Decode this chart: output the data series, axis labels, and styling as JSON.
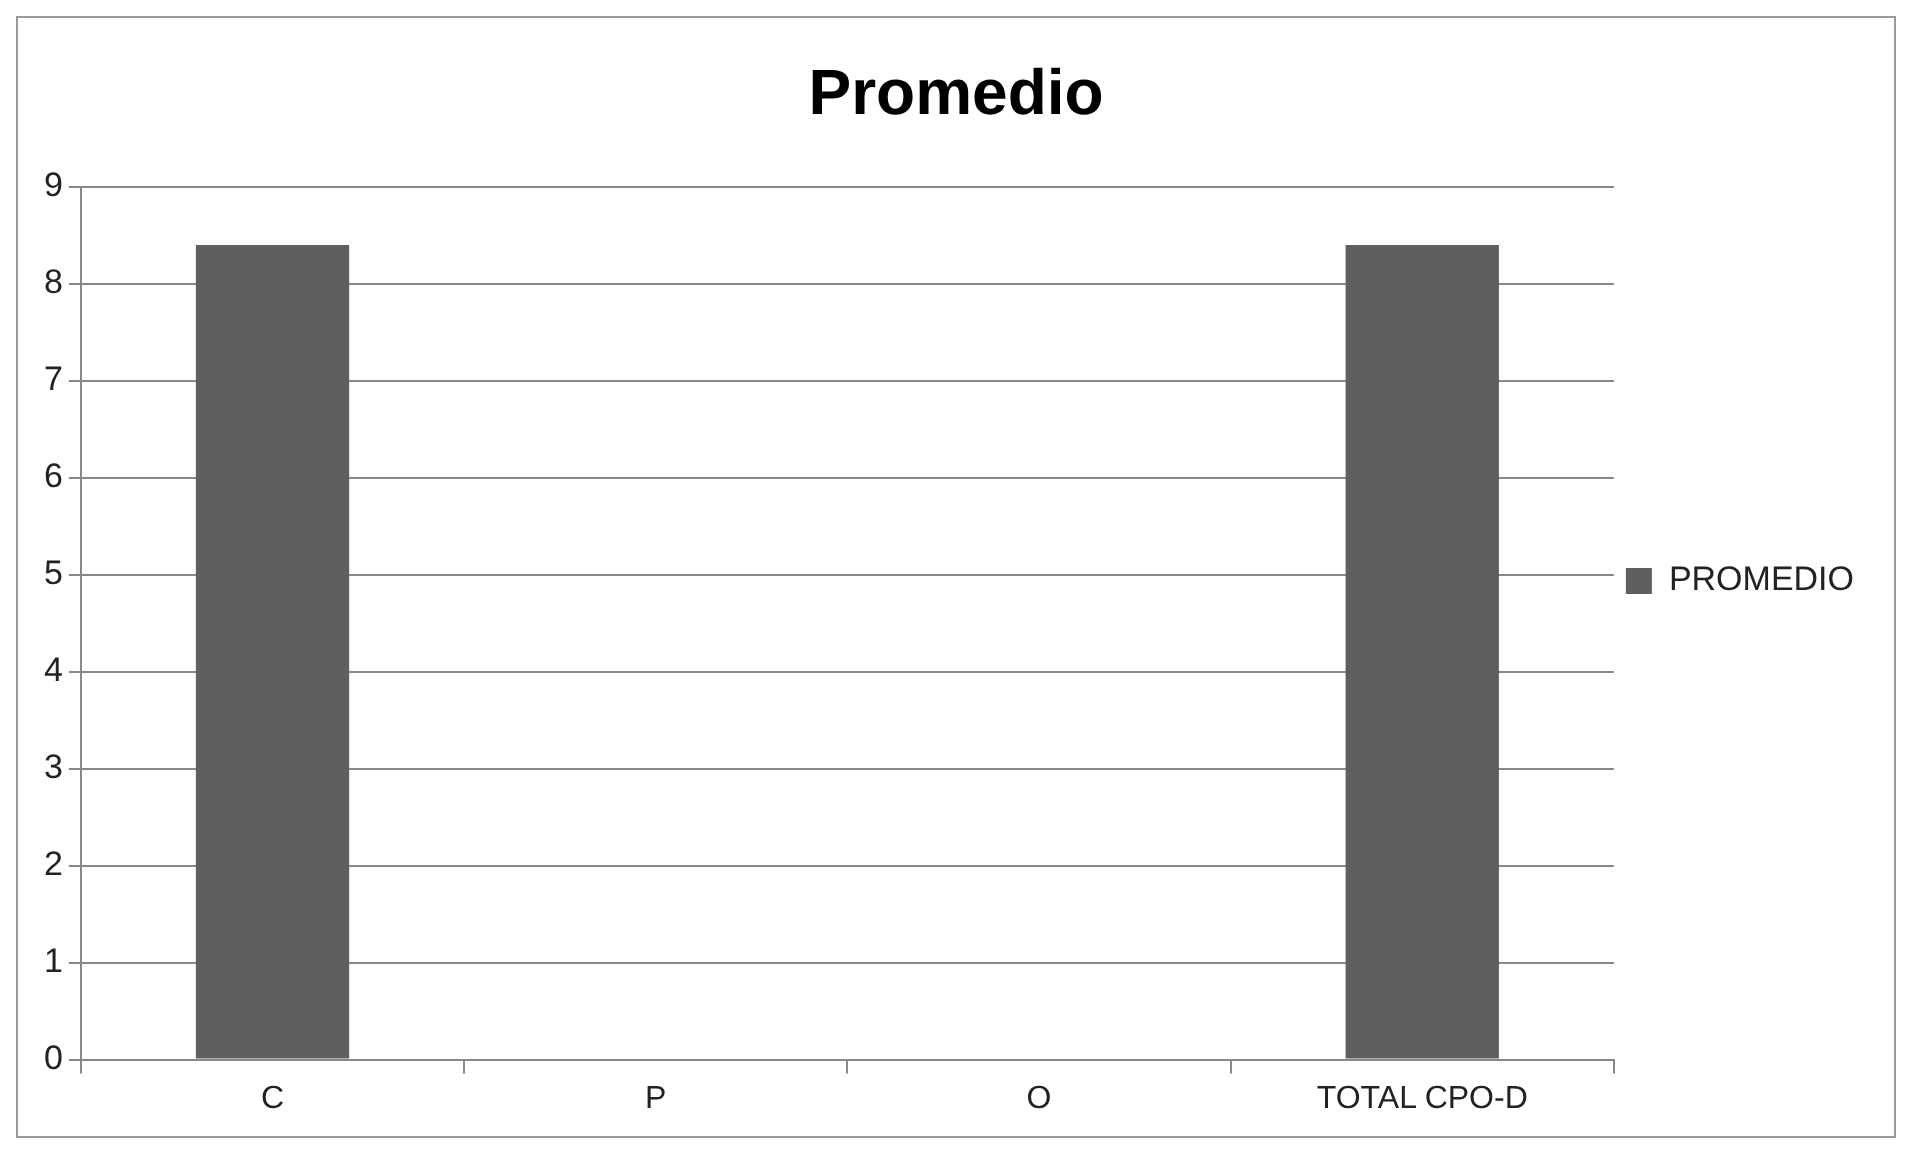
{
  "chart_data": {
    "type": "bar",
    "title": "Promedio",
    "categories": [
      "C",
      "P",
      "O",
      "TOTAL CPO-D"
    ],
    "series": [
      {
        "name": "PROMEDIO",
        "color": "#5f5f5f",
        "values": [
          8.4,
          0,
          0,
          8.4
        ]
      }
    ],
    "ylim": [
      0,
      9
    ],
    "yticks": [
      0,
      1,
      2,
      3,
      4,
      5,
      6,
      7,
      8,
      9
    ],
    "grid": "y",
    "legend": "right"
  }
}
